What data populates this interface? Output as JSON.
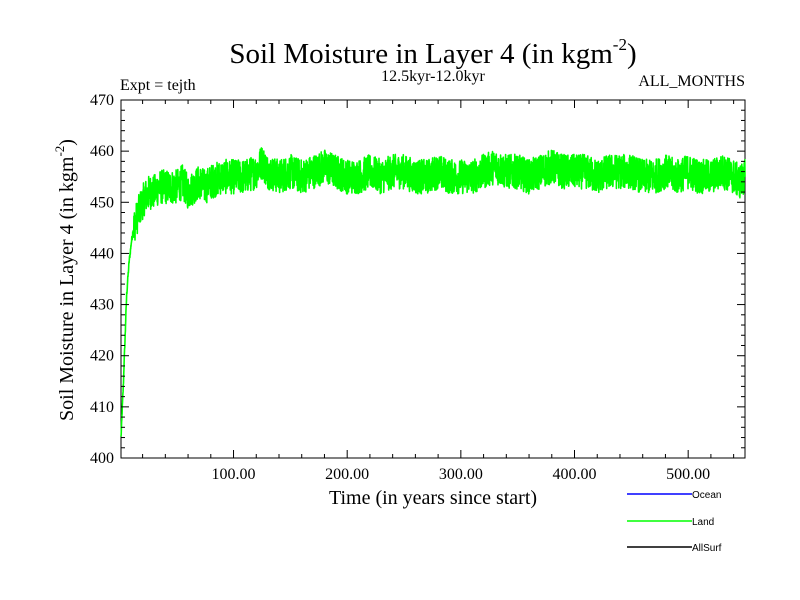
{
  "chart_data": {
    "type": "line",
    "title": "Soil Moisture in Layer 4 (in kgm",
    "title_superscript": "-2",
    "title_close": ")",
    "subtitle": "12.5kyr-12.0kyr",
    "expt_label": "Expt = tejth",
    "months_label": "ALL_MONTHS",
    "xlabel": "Time (in years since start)",
    "ylabel": "Soil Moisture in Layer 4 (in kgm",
    "ylabel_superscript": "-2",
    "ylabel_close": ")",
    "xlim": [
      1,
      550
    ],
    "ylim": [
      400,
      470
    ],
    "xticks": [
      100,
      200,
      300,
      400,
      500
    ],
    "xtick_labels": [
      "100.00",
      "200.00",
      "300.00",
      "400.00",
      "500.00"
    ],
    "yticks": [
      400,
      410,
      420,
      430,
      440,
      450,
      460,
      470
    ],
    "ytick_labels": [
      "400",
      "410",
      "420",
      "430",
      "440",
      "450",
      "460",
      "470"
    ],
    "grid": false,
    "legend_position": "bottom-right",
    "series": [
      {
        "name": "Ocean",
        "color": "#0000ff",
        "x": [],
        "y": []
      },
      {
        "name": "Land",
        "color": "#00ff00",
        "x": [
          1,
          2,
          3,
          4,
          5,
          6,
          8,
          10,
          12,
          15,
          18,
          22,
          26,
          30,
          35,
          40,
          45,
          50,
          55,
          60,
          65,
          70,
          75,
          80,
          90,
          100,
          110,
          120,
          125,
          130,
          140,
          150,
          160,
          170,
          180,
          190,
          200,
          210,
          220,
          230,
          240,
          250,
          260,
          270,
          280,
          290,
          300,
          310,
          320,
          330,
          340,
          350,
          360,
          370,
          380,
          390,
          400,
          410,
          420,
          430,
          440,
          450,
          460,
          470,
          480,
          490,
          500,
          510,
          520,
          530,
          540,
          545,
          550
        ],
        "y": [
          404,
          409,
          414,
          420,
          426,
          432,
          438,
          442,
          445,
          447,
          449,
          451,
          452,
          452,
          453,
          453,
          453,
          453,
          454,
          452,
          453,
          454,
          453,
          454,
          455,
          455,
          455,
          456,
          458,
          456,
          455,
          456,
          455,
          456,
          457,
          456,
          455,
          455,
          456,
          455,
          456,
          456,
          455,
          455,
          456,
          455,
          455,
          455,
          456,
          457,
          456,
          456,
          455,
          456,
          457,
          456,
          456,
          456,
          455,
          456,
          456,
          456,
          455,
          455,
          456,
          455,
          456,
          455,
          455,
          456,
          455,
          454,
          455
        ]
      },
      {
        "name": "AllSurf",
        "color": "#000000",
        "x": [],
        "y": []
      }
    ]
  }
}
